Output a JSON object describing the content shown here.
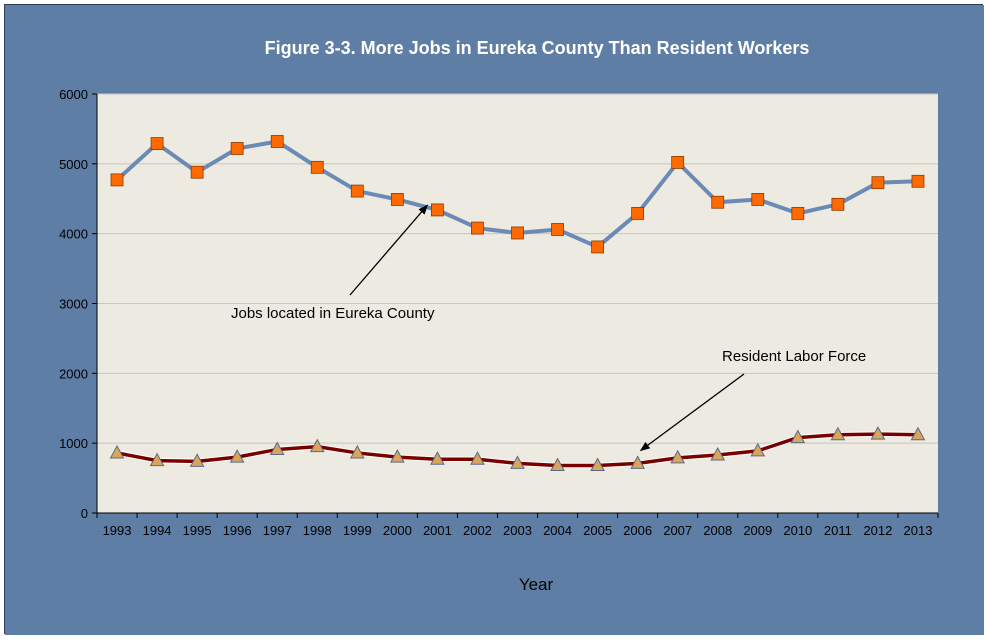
{
  "colors": {
    "frame_bg": "#5f7ea6",
    "plot_bg": "#edeae1",
    "grid": "#c8c6bd",
    "jobs_line": "#6b8ab5",
    "jobs_marker": "#ff6a00",
    "labor_line": "#7a0000",
    "labor_marker": "#d9a55a"
  },
  "chart_data": {
    "type": "line",
    "title": "Figure 3-3. More Jobs in Eureka County Than Resident Workers",
    "xlabel": "Year",
    "ylabel": "",
    "ylim": [
      0,
      6000
    ],
    "yticks": [
      0,
      1000,
      2000,
      3000,
      4000,
      5000,
      6000
    ],
    "grid": true,
    "categories": [
      "1993",
      "1994",
      "1995",
      "1996",
      "1997",
      "1998",
      "1999",
      "2000",
      "2001",
      "2002",
      "2003",
      "2004",
      "2005",
      "2006",
      "2007",
      "2008",
      "2009",
      "2010",
      "2011",
      "2012",
      "2013"
    ],
    "series": [
      {
        "name": "Jobs located in Eureka County",
        "marker": "square",
        "values": [
          4770,
          5290,
          4880,
          5220,
          5320,
          4950,
          4610,
          4490,
          4340,
          4080,
          4010,
          4060,
          3810,
          4290,
          5020,
          4450,
          4490,
          4290,
          4420,
          4730,
          4750
        ]
      },
      {
        "name": "Resident Labor Force",
        "marker": "triangle",
        "values": [
          860,
          750,
          740,
          800,
          910,
          950,
          860,
          800,
          770,
          770,
          710,
          680,
          680,
          710,
          790,
          830,
          890,
          1080,
          1120,
          1130,
          1120
        ]
      }
    ],
    "annotations": [
      {
        "text": "Jobs located in Eureka County",
        "points_to_category": "2001",
        "points_to_value": 4480
      },
      {
        "text": "Resident Labor Force",
        "points_to_category": "2006",
        "points_to_value": 1010
      }
    ]
  }
}
